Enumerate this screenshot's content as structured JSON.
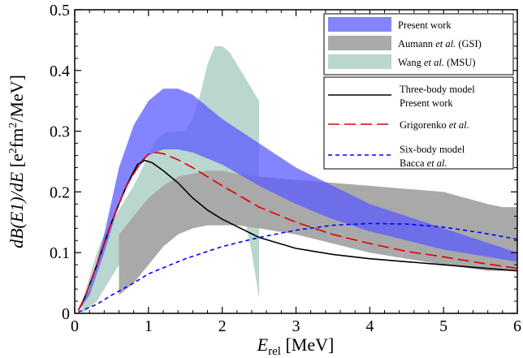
{
  "chart_data": {
    "type": "line",
    "xlabel": "E_rel [MeV]",
    "xlabel_main": "E",
    "xlabel_sub": "rel",
    "xlabel_unit": " [MeV]",
    "ylabel": "dB(E1)/dE [e²fm²/MeV]",
    "ylabel_main": "dB(E1)/dE",
    "ylabel_unit_a": " [e",
    "ylabel_sup_a": "2",
    "ylabel_unit_b": "fm",
    "ylabel_sup_b": "2",
    "ylabel_unit_c": "/MeV]",
    "xlim": [
      0,
      6
    ],
    "ylim": [
      0,
      0.5
    ],
    "x_ticks": [
      0,
      1,
      2,
      3,
      4,
      5,
      6
    ],
    "y_ticks": [
      0,
      0.1,
      0.2,
      0.3,
      0.4,
      0.5
    ],
    "x_tick_labels": [
      "0",
      "1",
      "2",
      "3",
      "4",
      "5",
      "6"
    ],
    "y_tick_labels": [
      "0",
      "0.1",
      "0.2",
      "0.3",
      "0.4",
      "0.5"
    ],
    "grid": false,
    "legend_position": "top-right",
    "bands": [
      {
        "name_parts": [
          {
            "t": "Wang ",
            "i": false
          },
          {
            "t": "et al.",
            "i": true
          },
          {
            "t": " (MSU)",
            "i": false
          }
        ],
        "color": "#b9d6cf",
        "x": [
          0.1,
          0.2,
          0.3,
          0.4,
          0.5,
          0.6,
          0.7,
          0.8,
          0.9,
          1.0,
          1.1,
          1.2,
          1.3,
          1.4,
          1.5,
          1.6,
          1.7,
          1.8,
          1.9,
          2.0,
          2.1,
          2.2,
          2.3,
          2.4,
          2.5
        ],
        "upper": [
          0.02,
          0.06,
          0.1,
          0.13,
          0.15,
          0.17,
          0.19,
          0.21,
          0.235,
          0.26,
          0.285,
          0.295,
          0.3,
          0.3,
          0.3,
          0.32,
          0.36,
          0.41,
          0.44,
          0.44,
          0.43,
          0.41,
          0.39,
          0.37,
          0.35
        ],
        "lower": [
          0.0,
          0.01,
          0.02,
          0.04,
          0.06,
          0.08,
          0.1,
          0.11,
          0.12,
          0.13,
          0.14,
          0.145,
          0.15,
          0.15,
          0.14,
          0.14,
          0.15,
          0.17,
          0.2,
          0.22,
          0.21,
          0.19,
          0.16,
          0.1,
          0.025
        ]
      },
      {
        "name_parts": [
          {
            "t": "Aumann ",
            "i": false
          },
          {
            "t": "et al.",
            "i": true
          },
          {
            "t": " (GSI)",
            "i": false
          }
        ],
        "color": "#a9a9a9",
        "x": [
          0.6,
          0.8,
          1.0,
          1.2,
          1.4,
          1.6,
          1.8,
          2.0,
          2.2,
          2.5,
          3.0,
          3.5,
          4.0,
          4.5,
          5.0,
          5.3,
          5.6,
          5.8,
          6.0
        ],
        "upper": [
          0.13,
          0.16,
          0.19,
          0.21,
          0.225,
          0.23,
          0.235,
          0.235,
          0.23,
          0.225,
          0.22,
          0.215,
          0.21,
          0.205,
          0.2,
          0.19,
          0.18,
          0.175,
          0.175
        ],
        "lower": [
          0.03,
          0.05,
          0.08,
          0.11,
          0.13,
          0.14,
          0.145,
          0.145,
          0.145,
          0.14,
          0.13,
          0.115,
          0.1,
          0.09,
          0.08,
          0.075,
          0.07,
          0.07,
          0.07
        ]
      },
      {
        "name_parts": [
          {
            "t": "Present work",
            "i": false
          }
        ],
        "color": "#5b5bff",
        "opacity": 0.75,
        "x": [
          0.05,
          0.2,
          0.4,
          0.6,
          0.8,
          1.0,
          1.2,
          1.4,
          1.6,
          1.8,
          2.0,
          2.5,
          3.0,
          3.5,
          4.0,
          4.5,
          5.0,
          5.5,
          6.0
        ],
        "upper": [
          0.005,
          0.04,
          0.13,
          0.24,
          0.31,
          0.35,
          0.37,
          0.37,
          0.36,
          0.34,
          0.32,
          0.28,
          0.24,
          0.21,
          0.18,
          0.16,
          0.14,
          0.12,
          0.1
        ],
        "lower": [
          0.003,
          0.03,
          0.1,
          0.18,
          0.23,
          0.26,
          0.27,
          0.27,
          0.265,
          0.255,
          0.245,
          0.21,
          0.18,
          0.155,
          0.135,
          0.12,
          0.105,
          0.095,
          0.085
        ]
      }
    ],
    "series": [
      {
        "name_parts": [
          {
            "t": "Three-body model",
            "i": false
          }
        ],
        "name_parts2": [
          {
            "t": "Present work",
            "i": false
          }
        ],
        "color": "#000000",
        "dash": "",
        "x": [
          0.05,
          0.15,
          0.3,
          0.5,
          0.7,
          0.85,
          0.95,
          1.05,
          1.2,
          1.4,
          1.6,
          1.8,
          2.0,
          2.5,
          3.0,
          3.5,
          4.0,
          4.5,
          5.0,
          5.5,
          6.0
        ],
        "y": [
          0.005,
          0.03,
          0.08,
          0.15,
          0.21,
          0.245,
          0.252,
          0.248,
          0.235,
          0.215,
          0.19,
          0.17,
          0.155,
          0.125,
          0.107,
          0.097,
          0.09,
          0.085,
          0.08,
          0.075,
          0.07
        ]
      },
      {
        "name_parts": [
          {
            "t": "Grigorenko ",
            "i": false
          },
          {
            "t": "et al.",
            "i": true
          }
        ],
        "color": "#e00000",
        "dash": "14 6",
        "x": [
          0.05,
          0.15,
          0.3,
          0.5,
          0.7,
          0.9,
          1.0,
          1.1,
          1.2,
          1.4,
          1.6,
          1.8,
          2.0,
          2.5,
          3.0,
          3.5,
          4.0,
          4.5,
          5.0,
          5.5,
          6.0
        ],
        "y": [
          0.005,
          0.03,
          0.08,
          0.15,
          0.21,
          0.25,
          0.262,
          0.265,
          0.263,
          0.253,
          0.24,
          0.225,
          0.21,
          0.175,
          0.15,
          0.13,
          0.115,
          0.102,
          0.093,
          0.083,
          0.074
        ]
      },
      {
        "name_parts": [
          {
            "t": "Six-body model",
            "i": false
          }
        ],
        "name_parts2": [
          {
            "t": "Bacca ",
            "i": false
          },
          {
            "t": "et al.",
            "i": true
          }
        ],
        "color": "#0000ff",
        "dash": "5 4",
        "x": [
          0.05,
          0.3,
          0.5,
          0.8,
          1.0,
          1.5,
          2.0,
          2.5,
          3.0,
          3.5,
          4.0,
          4.5,
          5.0,
          5.5,
          6.0
        ],
        "y": [
          0.002,
          0.015,
          0.03,
          0.05,
          0.065,
          0.09,
          0.11,
          0.125,
          0.137,
          0.145,
          0.148,
          0.147,
          0.142,
          0.133,
          0.122
        ]
      }
    ],
    "legend_bands": [
      {
        "parts": [
          {
            "t": "Present work",
            "i": false
          }
        ],
        "color": "#5b5bff",
        "opacity": 0.75
      },
      {
        "parts": [
          {
            "t": "Aumann ",
            "i": false
          },
          {
            "t": "et al.",
            "i": true
          },
          {
            "t": " (GSI)",
            "i": false
          }
        ],
        "color": "#a9a9a9",
        "opacity": 1
      },
      {
        "parts": [
          {
            "t": "Wang ",
            "i": false
          },
          {
            "t": "et al.",
            "i": true
          },
          {
            "t": " (MSU)",
            "i": false
          }
        ],
        "color": "#b9d6cf",
        "opacity": 1
      }
    ],
    "legend_lines": [
      {
        "lines": [
          [
            {
              "t": "Three-body model",
              "i": false
            }
          ],
          [
            {
              "t": "Present work",
              "i": false
            }
          ]
        ],
        "color": "#000000",
        "dash": ""
      },
      {
        "lines": [
          [
            {
              "t": "Grigorenko ",
              "i": false
            },
            {
              "t": "et al.",
              "i": true
            }
          ]
        ],
        "color": "#e00000",
        "dash": "14 6"
      },
      {
        "lines": [
          [
            {
              "t": "Six-body model",
              "i": false
            }
          ],
          [
            {
              "t": "Bacca ",
              "i": false
            },
            {
              "t": "et al.",
              "i": true
            }
          ]
        ],
        "color": "#0000ff",
        "dash": "5 4"
      }
    ]
  }
}
